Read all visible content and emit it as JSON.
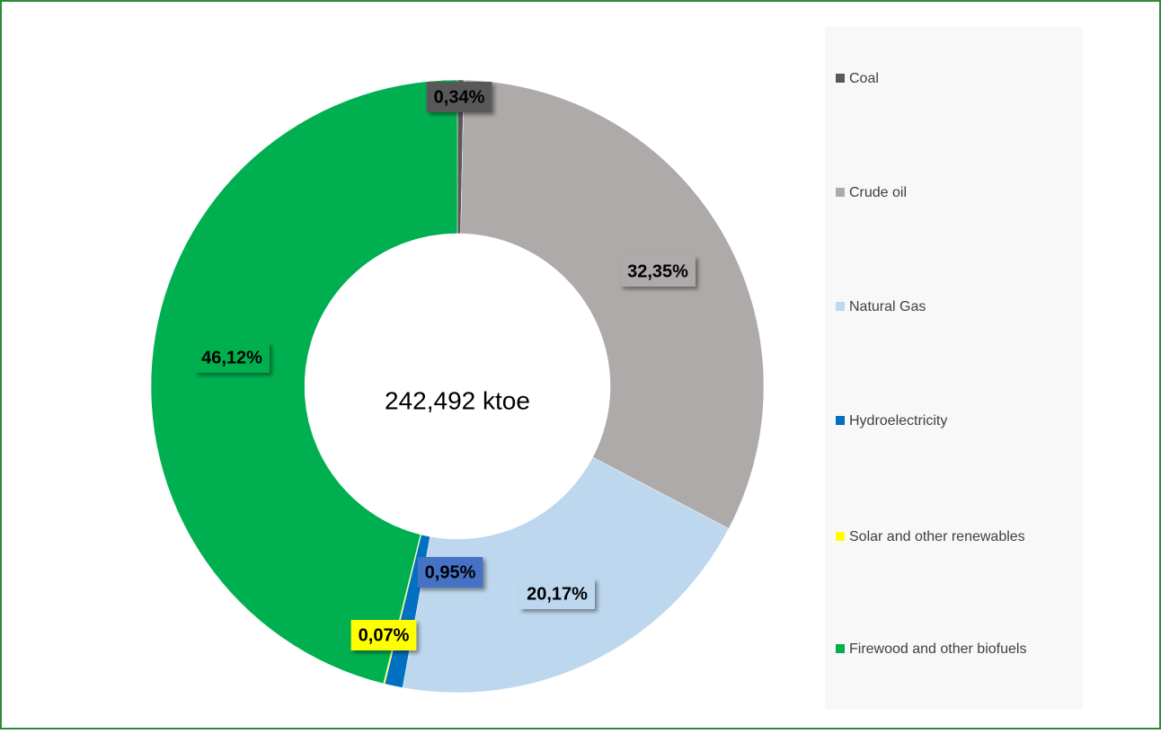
{
  "chart_data": {
    "type": "donut",
    "annotation": "242,492 ktoe",
    "categories": [
      "Coal",
      "Crude oil",
      "Natural Gas",
      "Hydroelectricity",
      "Solar and other renewables",
      "Firewood and other biofuels"
    ],
    "values": [
      0.34,
      32.35,
      20.17,
      0.95,
      0.07,
      46.12
    ],
    "value_labels": [
      "0,34%",
      "32,35%",
      "20,17%",
      "0,95%",
      "0,07%",
      "46,12%"
    ],
    "colors": [
      "#595959",
      "#aeaaaa",
      "#bdd7ee",
      "#0070c0",
      "#ffff00",
      "#00b050"
    ],
    "label_colors": [
      "#595959",
      "#aeaaaa",
      "#bdd7ee",
      "#4472c4",
      "#ffff00",
      "#00b050"
    ]
  }
}
